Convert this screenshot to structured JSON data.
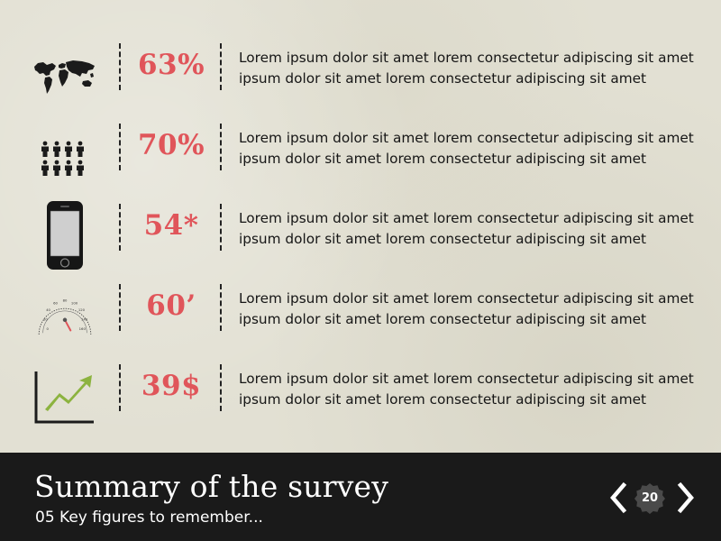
{
  "slide": {
    "title": "Summary of the survey",
    "subtitle": "05 Key figures to remember...",
    "page_number": "20"
  },
  "colors": {
    "accent": "#e0555a",
    "footer_bg": "#1a1a1a",
    "paper_bg": "#e2e0d3",
    "chart_green": "#8cb33f"
  },
  "figures": [
    {
      "icon": "world-map-icon",
      "value": "63%",
      "text": "Lorem ipsum dolor sit amet lorem consectetur adipiscing sit amet ipsum dolor sit amet lorem consectetur adipiscing sit amet"
    },
    {
      "icon": "people-icon",
      "value": "70%",
      "text": "Lorem ipsum dolor sit amet lorem consectetur adipiscing sit amet ipsum dolor sit amet lorem consectetur adipiscing sit amet"
    },
    {
      "icon": "smartphone-icon",
      "value": "54*",
      "text": "Lorem ipsum dolor sit amet lorem consectetur adipiscing sit amet ipsum dolor sit amet lorem consectetur adipiscing sit amet"
    },
    {
      "icon": "speedometer-icon",
      "value": "60’",
      "text": "Lorem ipsum dolor sit amet lorem consectetur adipiscing sit amet ipsum dolor sit amet lorem consectetur adipiscing sit amet"
    },
    {
      "icon": "growth-chart-icon",
      "value": "39$",
      "text": "Lorem ipsum dolor sit amet lorem consectetur adipiscing sit amet ipsum dolor sit amet lorem consectetur adipiscing sit amet"
    }
  ],
  "speedometer": {
    "ticks": [
      "0",
      "20",
      "40",
      "60",
      "80",
      "100",
      "120",
      "140",
      "160"
    ]
  }
}
